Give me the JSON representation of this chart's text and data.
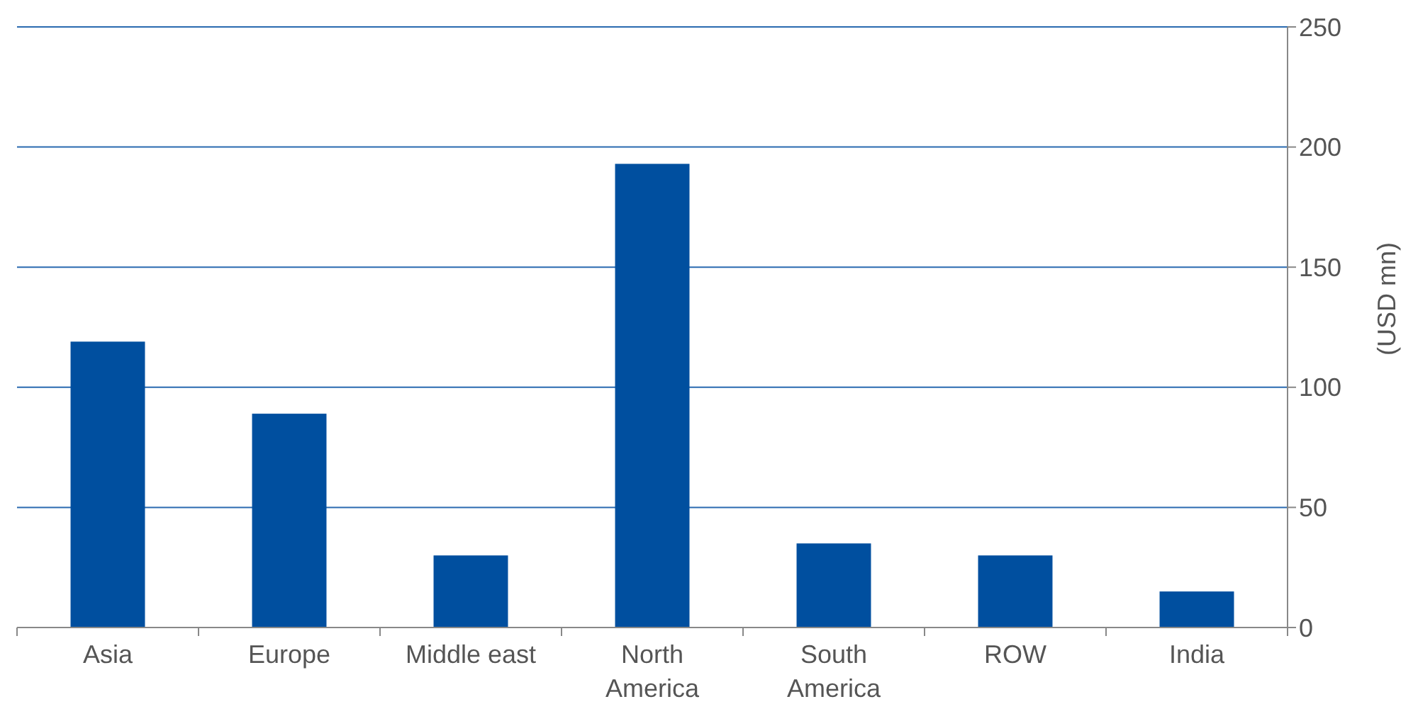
{
  "chart_data": {
    "type": "bar",
    "ylabel": "(USD mn)",
    "categories": [
      "Asia",
      "Europe",
      "Middle east",
      "North America",
      "South America",
      "ROW",
      "India"
    ],
    "values": [
      119,
      89,
      30,
      193,
      35,
      30,
      15
    ],
    "color": "#004f9f",
    "ylim": [
      0,
      250
    ],
    "yticks": [
      0,
      50,
      100,
      150,
      200,
      250
    ],
    "grid": "y"
  }
}
